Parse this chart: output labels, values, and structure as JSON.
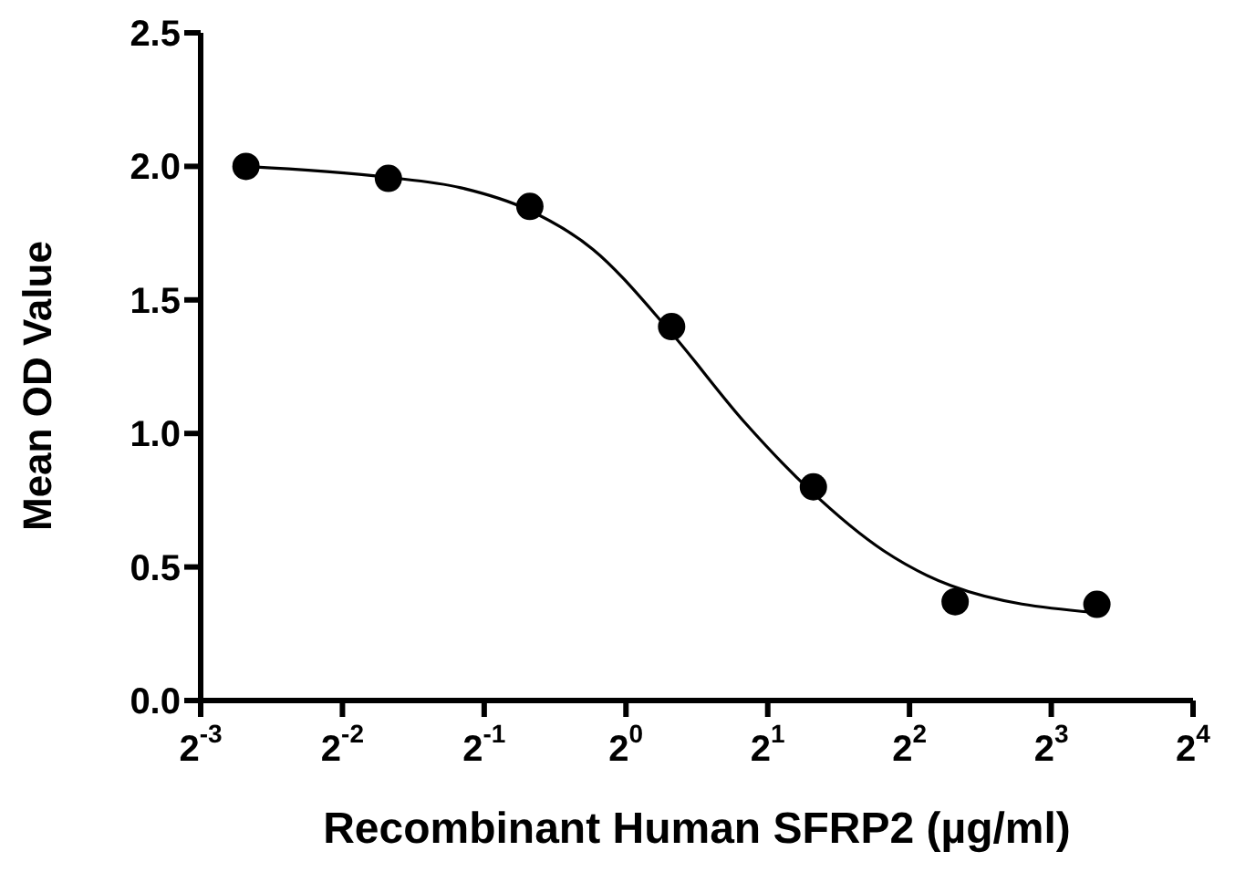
{
  "chart_data": {
    "type": "scatter",
    "xlabel": "Recombinant Human SFRP2 (µg/ml)",
    "ylabel": "Mean OD Value",
    "log": "x",
    "x": [
      0.156,
      0.313,
      0.625,
      1.25,
      2.5,
      5,
      10
    ],
    "series": [
      {
        "color": "#000000",
        "marker": "circle",
        "values": [
          2.0,
          1.955,
          1.85,
          1.4,
          0.8,
          0.37,
          0.36
        ]
      },
      {
        "type": "line",
        "color": "#000000",
        "marker": "none",
        "x": [
          0.155,
          0.309,
          0.446,
          0.615,
          0.85,
          1.23,
          1.79,
          2.45,
          3.53,
          4.9,
          9.8
        ],
        "values": [
          2.0,
          1.96,
          1.92,
          1.84,
          1.69,
          1.39,
          1.04,
          0.79,
          0.56,
          0.43,
          0.33
        ]
      }
    ],
    "xlim": [
      0.125,
      16
    ],
    "xticks": [
      {
        "value": 0.125,
        "label": "2$^{-3}$"
      },
      {
        "value": 0.25,
        "label": "2$^{-2}$"
      },
      {
        "value": 0.5,
        "label": "2$^{-1}$"
      },
      {
        "value": 1,
        "label": "2$^{0}$"
      },
      {
        "value": 2,
        "label": "2$^{1}$"
      },
      {
        "value": 4,
        "label": "2$^{2}$"
      },
      {
        "value": 8,
        "label": "2$^{3}$"
      },
      {
        "value": 16,
        "label": "2$^{4}$"
      }
    ],
    "ylim": [
      0,
      2.5
    ],
    "yticks": [
      {
        "value": 0,
        "label": "0.0"
      },
      {
        "value": 0.5,
        "label": "0.5"
      },
      {
        "value": 1,
        "label": "1.0"
      },
      {
        "value": 1.5,
        "label": "1.5"
      },
      {
        "value": 2,
        "label": "2.0"
      },
      {
        "value": 2.5,
        "label": "2.5"
      }
    ],
    "grid": false
  }
}
